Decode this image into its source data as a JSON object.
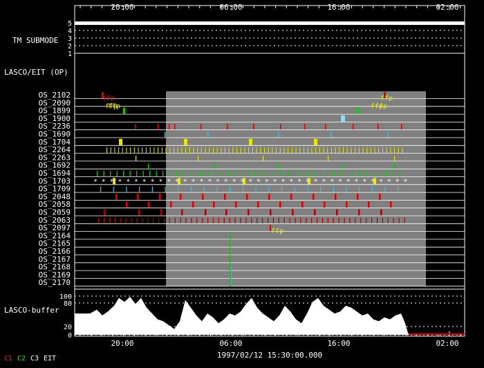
{
  "time_axis": {
    "ticks": [
      "20:00",
      "06:00",
      "16:00",
      "02:00"
    ],
    "bottom_label": "1997/02/12 15:30:00.000"
  },
  "tm_submode": {
    "label": "TM SUBMODE",
    "levels": [
      "5",
      "4",
      "3",
      "2",
      "1"
    ],
    "current_level": "5"
  },
  "section_label": "LASCO/EIT (OP)",
  "os_rows": [
    "OS_2102",
    "OS_2090",
    "OS_1899",
    "OS_1900",
    "OS_2236",
    "OS_1690",
    "OS_1704",
    "OS_2264",
    "OS_2263",
    "OS_1692",
    "OS_1694",
    "OS_1703",
    "OS_1709",
    "OS_2048",
    "OS_2058",
    "OS_2059",
    "OS_2063",
    "OS_2097",
    "OS_2164",
    "OS_2165",
    "OS_2166",
    "OS_2167",
    "OS_2168",
    "OS_2169",
    "OS_2170"
  ],
  "ffp_marker": "ffp",
  "buffer": {
    "label": "LASCO-buffer",
    "ticks": [
      "100",
      "80",
      "20",
      "0"
    ]
  },
  "legend": [
    {
      "label": "C1",
      "color": "#ff2020"
    },
    {
      "label": "C2",
      "color": "#20e020"
    },
    {
      "label": "C3",
      "color": "#ffffff"
    },
    {
      "label": "EIT",
      "color": "#ffffff"
    }
  ],
  "colors": {
    "red": "#e00000",
    "dark_red": "#b00000",
    "yellow": "#e8e800",
    "green": "#00d000",
    "cyan": "#40c0e0",
    "grey_shade": "#808080"
  }
}
